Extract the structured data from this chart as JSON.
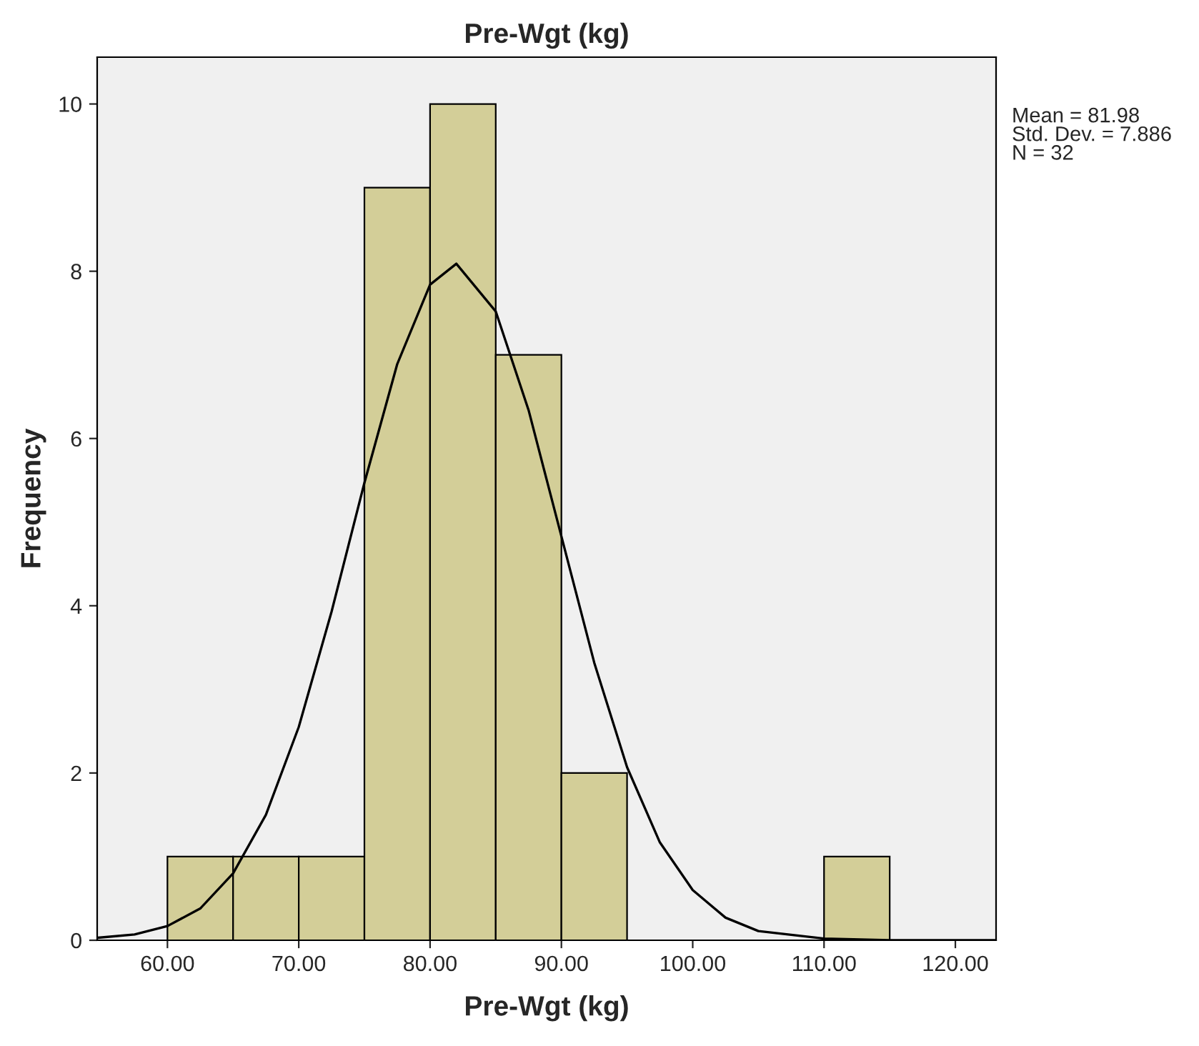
{
  "chart_data": {
    "type": "histogram",
    "title": "Pre-Wgt (kg)",
    "xlabel": "Pre-Wgt (kg)",
    "ylabel": "Frequency",
    "bins": [
      60,
      65,
      70,
      75,
      80,
      85,
      90,
      95,
      100,
      105,
      110,
      115
    ],
    "values": [
      1,
      1,
      1,
      9,
      10,
      7,
      2,
      0,
      0,
      0,
      1
    ],
    "color": "#d3ce98",
    "series": [
      {
        "type": "line",
        "color": "#000000",
        "x": [
          54.7,
          57.5,
          60,
          62.5,
          65,
          67.5,
          70,
          72.5,
          75,
          77.5,
          80,
          82,
          85,
          87.5,
          90,
          92.5,
          95,
          97.5,
          100,
          102.5,
          105,
          110,
          115,
          123
        ],
        "values": [
          0.03,
          0.07,
          0.17,
          0.38,
          0.8,
          1.5,
          2.55,
          3.93,
          5.47,
          6.89,
          7.84,
          8.09,
          7.52,
          6.34,
          4.83,
          3.32,
          2.07,
          1.17,
          0.6,
          0.27,
          0.11,
          0.02,
          0,
          0
        ]
      }
    ],
    "xlim": [
      54.65,
      123.1
    ],
    "ylim": [
      0,
      10.56
    ],
    "xticks": [
      {
        "value": 60,
        "label": "60.00"
      },
      {
        "value": 70,
        "label": "70.00"
      },
      {
        "value": 80,
        "label": "80.00"
      },
      {
        "value": 90,
        "label": "90.00"
      },
      {
        "value": 100,
        "label": "100.00"
      },
      {
        "value": 110,
        "label": "110.00"
      },
      {
        "value": 120,
        "label": "120.00"
      }
    ],
    "yticks": [
      0,
      2,
      4,
      6,
      8,
      10
    ],
    "annotations": [
      "Mean = 81.98\nStd. Dev. = 7.886\nN = 32"
    ],
    "grid": false
  }
}
